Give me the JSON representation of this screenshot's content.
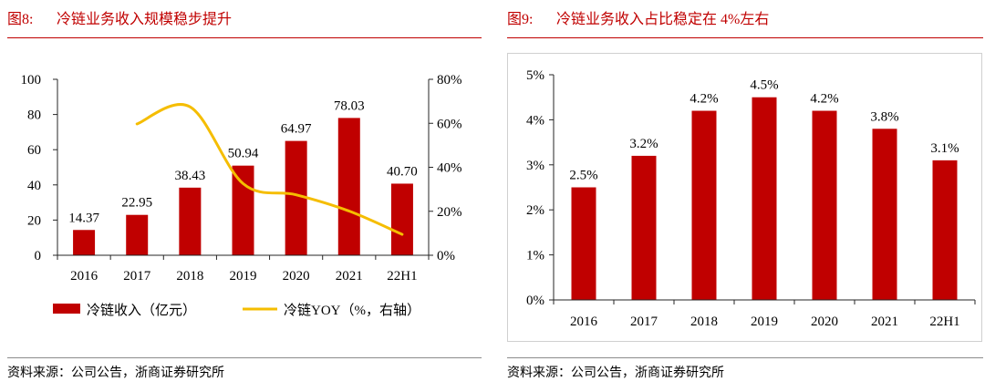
{
  "figures": [
    {
      "number": "图8:",
      "source": "资料来源：公司公告，浙商证券研究所"
    },
    {
      "number": "图9:",
      "source": "资料来源：公司公告，浙商证券研究所"
    }
  ],
  "colors": {
    "accent": "#C00000",
    "bar": "#C00000",
    "line": "#F5BD00",
    "axis": "#262626",
    "frame": "#d0d0d0"
  },
  "chart_data": [
    {
      "type": "bar",
      "title": "冷链业务收入规模稳步提升",
      "categories": [
        "2016",
        "2017",
        "2018",
        "2019",
        "2020",
        "2021",
        "22H1"
      ],
      "series": [
        {
          "name": "冷链收入（亿元）",
          "type": "bar",
          "axis": "left",
          "values": [
            14.37,
            22.95,
            38.43,
            50.94,
            64.97,
            78.03,
            40.7
          ],
          "labels": [
            "14.37",
            "22.95",
            "38.43",
            "50.94",
            "64.97",
            "78.03",
            "40.70"
          ]
        },
        {
          "name": "冷链YOY（%，右轴）",
          "type": "line",
          "axis": "right",
          "values": [
            null,
            59.7,
            67.5,
            32.6,
            27.5,
            20.1,
            9.5
          ]
        }
      ],
      "y_left": {
        "min": 0,
        "max": 100,
        "ticks": [
          0,
          20,
          40,
          60,
          80,
          100
        ],
        "tick_labels": [
          "0",
          "20",
          "40",
          "60",
          "80",
          "100"
        ]
      },
      "y_right": {
        "min": 0,
        "max": 80,
        "ticks": [
          0,
          20,
          40,
          60,
          80
        ],
        "tick_labels": [
          "0%",
          "20%",
          "40%",
          "60%",
          "80%"
        ]
      },
      "grid": false,
      "legend": "bottom"
    },
    {
      "type": "bar",
      "title": "冷链业务收入占比稳定在 4%左右",
      "categories": [
        "2016",
        "2017",
        "2018",
        "2019",
        "2020",
        "2021",
        "22H1"
      ],
      "series": [
        {
          "type": "bar",
          "values": [
            2.5,
            3.2,
            4.2,
            4.5,
            4.2,
            3.8,
            3.1
          ],
          "labels": [
            "2.5%",
            "3.2%",
            "4.2%",
            "4.5%",
            "4.2%",
            "3.8%",
            "3.1%"
          ]
        }
      ],
      "y_left": {
        "min": 0,
        "max": 5,
        "ticks": [
          0,
          1,
          2,
          3,
          4,
          5
        ],
        "tick_labels": [
          "0%",
          "1%",
          "2%",
          "3%",
          "4%",
          "5%"
        ]
      },
      "grid": false
    }
  ]
}
